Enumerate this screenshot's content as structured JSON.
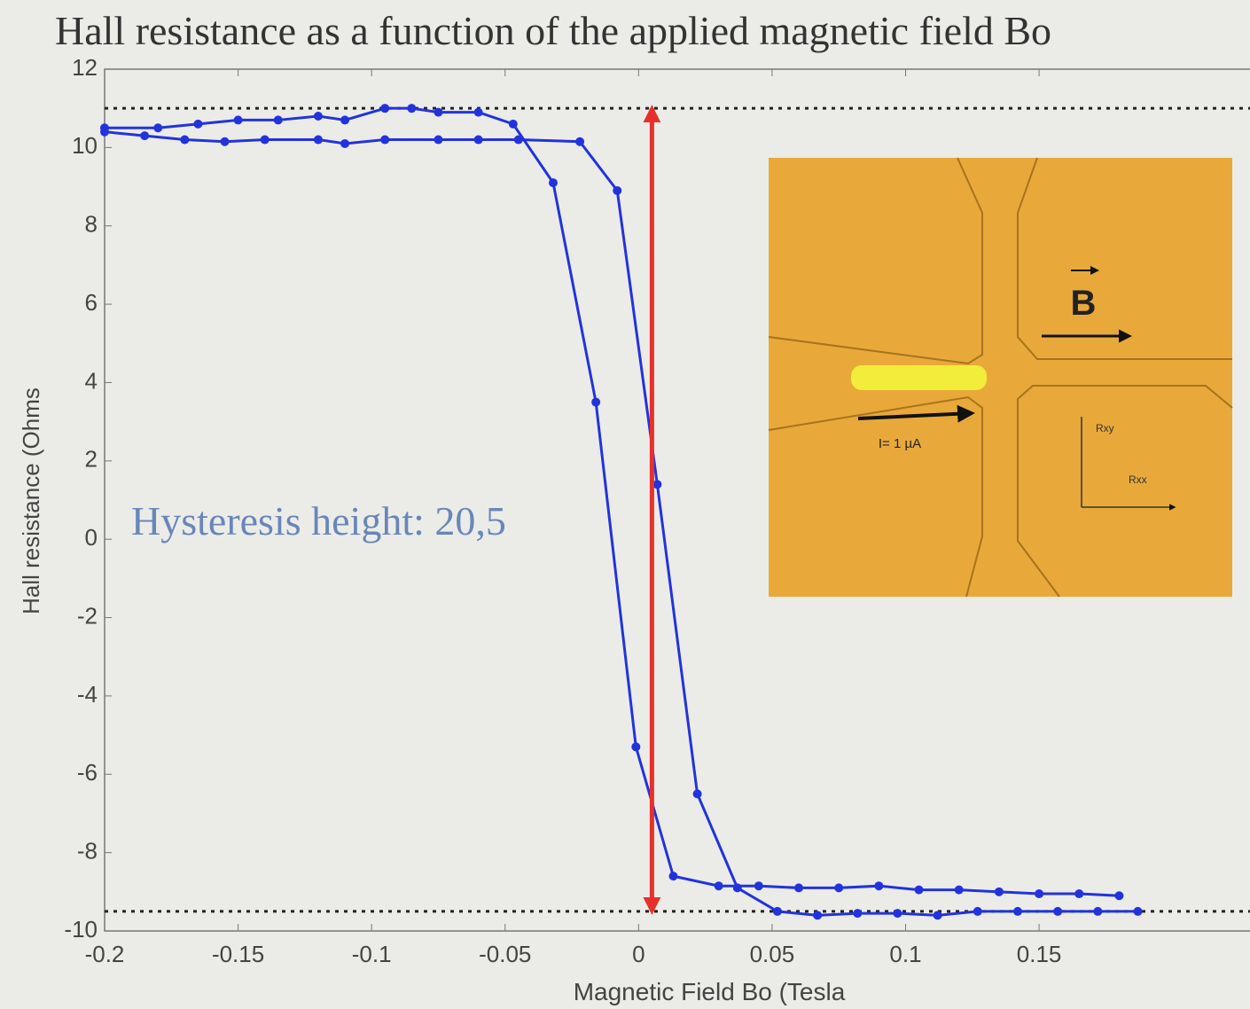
{
  "chart_data": {
    "type": "line",
    "title": "Hall resistance as a function of the applied magnetic field Bo",
    "x_label": "Magnetic Field Bo (Tesla",
    "y_label": "Hall resistance (Ohms",
    "annotation": "Hysteresis height: 20,5",
    "xlim": [
      -0.2,
      0.229
    ],
    "ylim": [
      -10,
      12
    ],
    "xticks": [
      -0.2,
      -0.15,
      -0.1,
      -0.05,
      0,
      0.05,
      0.1,
      0.15
    ],
    "yticks": [
      -10,
      -8,
      -6,
      -4,
      -2,
      0,
      2,
      4,
      6,
      8,
      10,
      12
    ],
    "reference_lines": [
      11,
      -9.5
    ],
    "arrow": {
      "x": 0.005,
      "y": [
        -9.5,
        11
      ],
      "color": "#e8302a"
    },
    "series": [
      {
        "color": "#2233dd",
        "x": [
          -0.2,
          -0.18,
          -0.165,
          -0.15,
          -0.135,
          -0.12,
          -0.11,
          -0.095,
          -0.085,
          -0.075,
          -0.06,
          -0.047,
          -0.032,
          -0.016,
          -0.001,
          0.013,
          0.03,
          0.045,
          0.06,
          0.075,
          0.09,
          0.105,
          0.12,
          0.135,
          0.15,
          0.165,
          0.18
        ],
        "values": [
          10.5,
          10.5,
          10.6,
          10.7,
          10.7,
          10.8,
          10.7,
          11,
          11,
          10.9,
          10.9,
          10.6,
          9.1,
          3.5,
          -5.3,
          -8.6,
          -8.85,
          -8.85,
          -8.9,
          -8.9,
          -8.85,
          -8.95,
          -8.95,
          -9.0,
          -9.05,
          -9.05,
          -9.1
        ]
      },
      {
        "color": "#2233dd",
        "x": [
          -0.2,
          -0.185,
          -0.17,
          -0.155,
          -0.14,
          -0.12,
          -0.11,
          -0.095,
          -0.075,
          -0.06,
          -0.045,
          -0.022,
          -0.008,
          0.007,
          0.022,
          0.037,
          0.052,
          0.067,
          0.082,
          0.097,
          0.112,
          0.127,
          0.142,
          0.157,
          0.172,
          0.187
        ],
        "values": [
          10.4,
          10.3,
          10.2,
          10.15,
          10.2,
          10.2,
          10.1,
          10.2,
          10.2,
          10.2,
          10.2,
          10.15,
          8.9,
          1.4,
          -6.5,
          -8.9,
          -9.5,
          -9.6,
          -9.55,
          -9.55,
          -9.6,
          -9.5,
          -9.5,
          -9.5,
          -9.5,
          -9.5
        ]
      }
    ]
  },
  "inset": {
    "vector_label": "B",
    "current_label": "I= 1 µA",
    "rxy_label": "Rxy",
    "rxx_label": "Rxx"
  }
}
